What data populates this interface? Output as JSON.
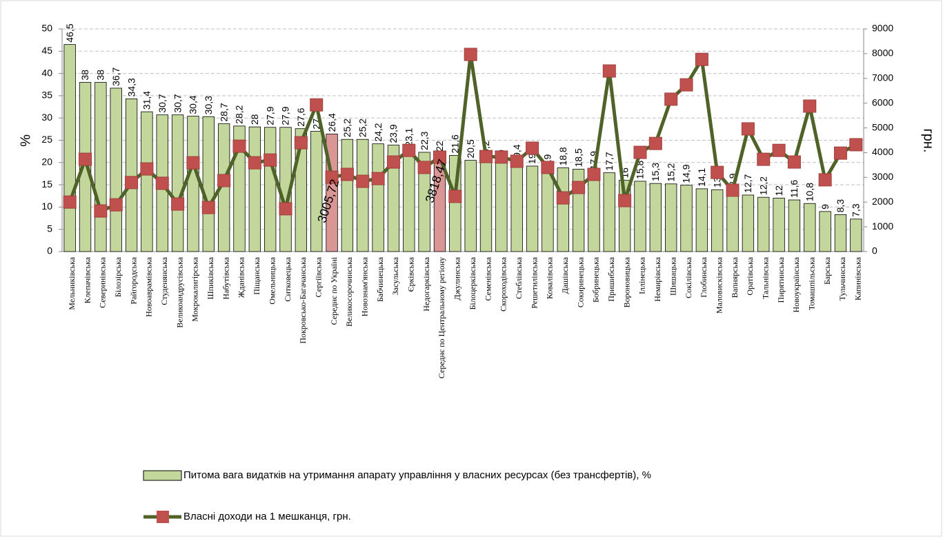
{
  "chart_data": {
    "type": "bar_line",
    "y_label": "%",
    "y2_label": "грн.",
    "categories": [
      "Мельниківська",
      "Клепачівська",
      "Северинівська",
      "Білозірська",
      "Райгородська",
      "Новоаврамівська",
      "Студенянська",
      "Великоандрусівська",
      "Мокрокалигірська",
      "Шпиківська",
      "Набутівська",
      "Жданівська",
      "Піщанська",
      "Омельницька",
      "Ситковецька",
      "Покровсько-Багачанська",
      "Сергіївська",
      "Середнє по Україні",
      "Великосорочинська",
      "Новознам'янська",
      "Бабчинецька",
      "Засульська",
      "Єрківська",
      "Недогарківська",
      "Середнє по Центральному регіону",
      "Джулинська",
      "Білоцерківська",
      "Семенівська",
      "Скороходівська",
      "Стеблівська",
      "Решетилівська",
      "Ковалівська",
      "Дашівська",
      "Сокиринецька",
      "Бобринецька",
      "Пришибська",
      "Вороновицька",
      "Іллінецька",
      "Немирівська",
      "Шишацька",
      "Сокілівська",
      "Глобинська",
      "Маловисківська",
      "Вапнярська",
      "Оратівська",
      "Тальнівська",
      "Пирятинська",
      "Новоукраїнська",
      "Томашпільська",
      "Барська",
      "Тульчинська",
      "Капинівська"
    ],
    "series": [
      {
        "name": "Питома вага видатків на утримання апарату управління у власних ресурсах (без трансфертів), %",
        "type": "bar",
        "color": "#c3d69b",
        "colors": [
          "#c3d69b",
          "#c3d69b",
          "#c3d69b",
          "#c3d69b",
          "#c3d69b",
          "#c3d69b",
          "#c3d69b",
          "#c3d69b",
          "#c3d69b",
          "#c3d69b",
          "#c3d69b",
          "#c3d69b",
          "#c3d69b",
          "#c3d69b",
          "#c3d69b",
          "#c3d69b",
          "#c3d69b",
          "#d99694",
          "#c3d69b",
          "#c3d69b",
          "#c3d69b",
          "#c3d69b",
          "#c3d69b",
          "#c3d69b",
          "#d99694",
          "#c3d69b",
          "#c3d69b",
          "#c3d69b",
          "#c3d69b",
          "#c3d69b",
          "#c3d69b",
          "#c3d69b",
          "#c3d69b",
          "#c3d69b",
          "#c3d69b",
          "#c3d69b",
          "#c3d69b",
          "#c3d69b",
          "#c3d69b",
          "#c3d69b",
          "#c3d69b",
          "#c3d69b",
          "#c3d69b",
          "#c3d69b",
          "#c3d69b",
          "#c3d69b",
          "#c3d69b",
          "#c3d69b",
          "#c3d69b",
          "#c3d69b",
          "#c3d69b",
          "#c3d69b"
        ],
        "values": [
          46.5,
          38,
          38,
          36.7,
          34.3,
          31.4,
          30.7,
          30.7,
          30.4,
          30.3,
          28.7,
          28.2,
          28,
          27.9,
          27.9,
          27.6,
          27,
          26.4,
          25.2,
          25.2,
          24.2,
          23.9,
          23.1,
          22.3,
          22,
          21.6,
          20.5,
          20.2,
          20,
          19.4,
          19.2,
          19,
          18.8,
          18.5,
          17.9,
          17.7,
          16,
          15.8,
          15.3,
          15.2,
          14.9,
          14.1,
          13.9,
          12.9,
          12.7,
          12.2,
          12,
          11.6,
          10.8,
          9,
          8.3,
          7.3
        ],
        "value_labels": [
          "46,5",
          "38",
          "38",
          "36,7",
          "34,3",
          "31,4",
          "30,7",
          "30,7",
          "30,4",
          "30,3",
          "28,7",
          "28,2",
          "28",
          "27,9",
          "27,9",
          "27,6",
          "27",
          "26,4",
          "25,2",
          "25,2",
          "24,2",
          "23,9",
          "23,1",
          "22,3",
          "22",
          "21,6",
          "20,5",
          "20,2",
          "20",
          "19,4",
          "19,2",
          "19",
          "18,8",
          "18,5",
          "17,9",
          "17,7",
          "16",
          "15,8",
          "15,3",
          "15,2",
          "14,9",
          "14,1",
          "13,9",
          "12,9",
          "12,7",
          "12,2",
          "12",
          "11,6",
          "10,8",
          "9",
          "8,3",
          "7,3"
        ]
      },
      {
        "name": "Власні доходи на 1 мешканця, грн.",
        "type": "line",
        "axis": "y2",
        "color": "#4f6228",
        "marker_color": "#c0504d",
        "values": [
          2000,
          3730,
          1640,
          1890,
          2790,
          3340,
          2760,
          1920,
          3590,
          1780,
          2870,
          4260,
          3590,
          3700,
          1730,
          4400,
          5930,
          3005.72,
          3120,
          2840,
          2950,
          3620,
          4090,
          3400,
          3818.47,
          2230,
          7970,
          3840,
          3820,
          3650,
          4180,
          3400,
          2170,
          2590,
          3120,
          7300,
          2060,
          4010,
          4370,
          6160,
          6740,
          7770,
          3200,
          2480,
          4960,
          3730,
          4090,
          3620,
          5880,
          2900,
          3980,
          4320
        ],
        "value_labels": [
          null,
          null,
          null,
          null,
          null,
          null,
          null,
          null,
          null,
          null,
          null,
          null,
          null,
          null,
          null,
          null,
          null,
          "3005,72",
          null,
          null,
          null,
          null,
          null,
          null,
          "3818,47",
          null,
          null,
          null,
          null,
          null,
          null,
          null,
          null,
          null,
          null,
          null,
          null,
          null,
          null,
          null,
          null,
          null,
          null,
          null,
          null,
          null,
          null,
          null,
          null,
          null,
          null,
          null
        ]
      }
    ],
    "ylim": [
      0,
      50
    ],
    "yticks": [
      0,
      5,
      10,
      15,
      20,
      25,
      30,
      35,
      40,
      45,
      50
    ],
    "y2lim": [
      0,
      9000
    ],
    "y2ticks": [
      0,
      1000,
      2000,
      3000,
      4000,
      5000,
      6000,
      7000,
      8000,
      9000
    ],
    "grid": true
  }
}
